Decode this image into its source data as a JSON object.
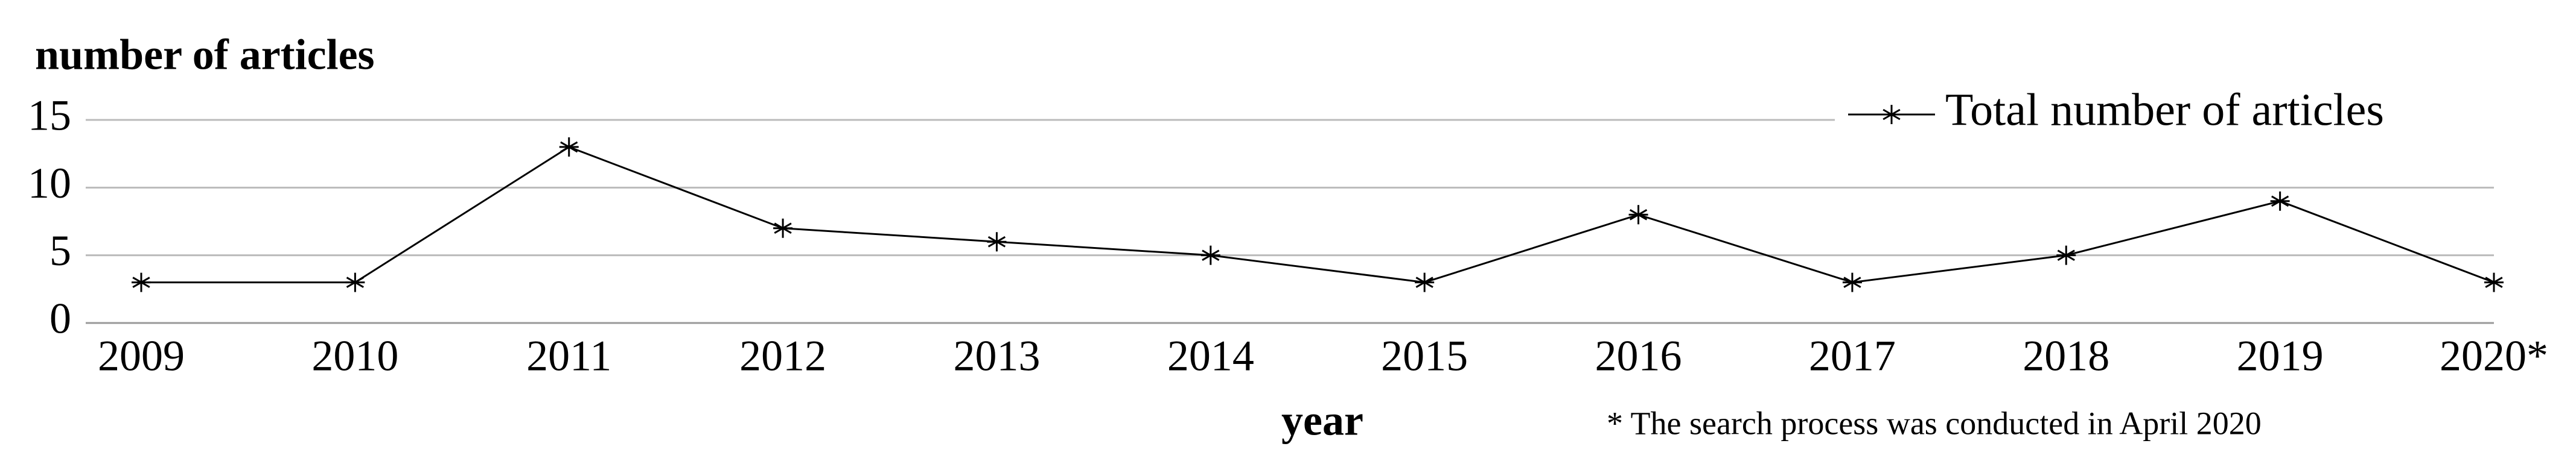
{
  "chart_data": {
    "type": "line",
    "y_label": "number of articles",
    "x_label": "year",
    "note": "* The search process was conducted in April 2020",
    "categories": [
      "2009",
      "2010",
      "2011",
      "2012",
      "2013",
      "2014",
      "2015",
      "2016",
      "2017",
      "2018",
      "2019",
      "2020*"
    ],
    "series": [
      {
        "name": "Total number of articles",
        "color": "#000000",
        "values": [
          3,
          3,
          13,
          7,
          6,
          5,
          3,
          8,
          3,
          5,
          9,
          3
        ]
      }
    ],
    "ylim": [
      0,
      15
    ],
    "yticks": [
      0,
      5,
      10,
      15
    ],
    "grid": true,
    "legend": "top-right"
  }
}
